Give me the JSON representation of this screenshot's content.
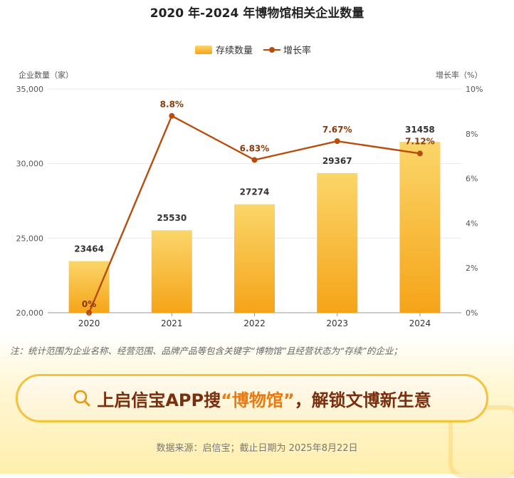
{
  "title": "2020 年-2024 年博物馆相关企业数量",
  "legend": {
    "bar": "存续数量",
    "line": "增长率"
  },
  "axes": {
    "left_title": "企业数量（家）",
    "right_title": "增长率（%）",
    "left_ticks": [
      "35,000",
      "30,000",
      "25,000",
      "20,000"
    ],
    "right_ticks": [
      "10%",
      "8%",
      "6%",
      "4%",
      "2%",
      "0%"
    ]
  },
  "chart_data": {
    "type": "bar",
    "categories": [
      "2020",
      "2021",
      "2022",
      "2023",
      "2024"
    ],
    "series": [
      {
        "name": "存续数量",
        "type": "bar",
        "axis": "left",
        "values": [
          23464,
          25530,
          27274,
          29367,
          31458
        ]
      },
      {
        "name": "增长率",
        "type": "line",
        "axis": "right",
        "values": [
          0,
          8.8,
          6.83,
          7.67,
          7.12
        ],
        "labels": [
          "0%",
          "8.8%",
          "6.83%",
          "7.67%",
          "7.12%"
        ]
      }
    ],
    "ylim_left": [
      20000,
      35000
    ],
    "ylim_right": [
      0,
      10
    ],
    "grid": true,
    "legend_position": "top-center"
  },
  "colors": {
    "bar_top": "#fbd66a",
    "bar_bottom": "#f5a418",
    "line": "#b84c0c",
    "label": "#8a3a0a"
  },
  "note": "注：统计范围为企业名称、经营范围、品牌产品等包含关键字“博物馆”且经营状态为“存续”的企业；",
  "banner": {
    "icon": "search-icon",
    "prefix": "上启信宝APP搜",
    "highlight": "“博物馆”",
    "suffix": "，解锁文博新生意"
  },
  "source": "数据来源：启信宝；截止日期为 2025年8月22日"
}
